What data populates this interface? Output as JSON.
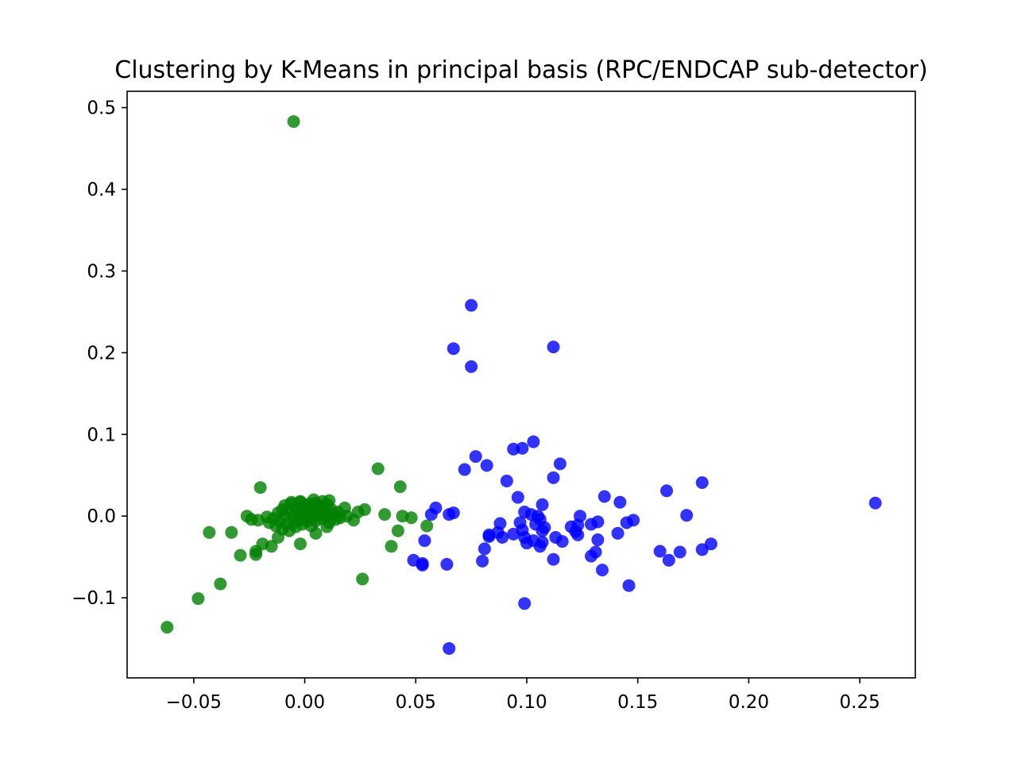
{
  "chart_data": {
    "type": "scatter",
    "title": "Clustering by K-Means in principal basis (RPC/ENDCAP sub-detector)",
    "xlabel": "",
    "ylabel": "",
    "xlim": [
      -0.08,
      0.275
    ],
    "ylim": [
      -0.198,
      0.52
    ],
    "x_ticks": [
      -0.05,
      0.0,
      0.05,
      0.1,
      0.15,
      0.2,
      0.25
    ],
    "x_tick_labels": [
      "−0.05",
      "0.00",
      "0.05",
      "0.10",
      "0.15",
      "0.20",
      "0.25"
    ],
    "y_ticks": [
      -0.1,
      0.0,
      0.1,
      0.2,
      0.3,
      0.4,
      0.5
    ],
    "y_tick_labels": [
      "−0.1",
      "0.0",
      "0.1",
      "0.2",
      "0.3",
      "0.4",
      "0.5"
    ],
    "grid": false,
    "legend": "none",
    "series": [
      {
        "color": "#008000",
        "points": [
          [
            -0.005,
            0.483
          ],
          [
            -0.062,
            -0.136
          ],
          [
            -0.048,
            -0.101
          ],
          [
            -0.038,
            -0.083
          ],
          [
            -0.043,
            -0.02
          ],
          [
            -0.033,
            -0.02
          ],
          [
            -0.029,
            -0.048
          ],
          [
            -0.022,
            -0.047
          ],
          [
            -0.022,
            -0.043
          ],
          [
            -0.019,
            -0.034
          ],
          [
            -0.015,
            -0.037
          ],
          [
            -0.012,
            -0.026
          ],
          [
            -0.02,
            0.035
          ],
          [
            -0.026,
            0.0
          ],
          [
            -0.024,
            -0.004
          ],
          [
            -0.021,
            -0.005
          ],
          [
            -0.017,
            -0.001
          ],
          [
            -0.016,
            -0.008
          ],
          [
            -0.014,
            -0.003
          ],
          [
            -0.013,
            -0.012
          ],
          [
            -0.012,
            0.004
          ],
          [
            -0.011,
            -0.007
          ],
          [
            -0.01,
            0.008
          ],
          [
            -0.01,
            -0.016
          ],
          [
            -0.009,
            0.013
          ],
          [
            -0.009,
            0.0
          ],
          [
            -0.008,
            -0.01
          ],
          [
            -0.007,
            0.005
          ],
          [
            -0.007,
            -0.018
          ],
          [
            -0.006,
            0.015
          ],
          [
            -0.005,
            0.0
          ],
          [
            -0.005,
            -0.008
          ],
          [
            -0.004,
            0.01
          ],
          [
            -0.004,
            -0.013
          ],
          [
            -0.003,
            0.004
          ],
          [
            -0.002,
            0.017
          ],
          [
            -0.002,
            -0.004
          ],
          [
            -0.001,
            0.009
          ],
          [
            -0.001,
            -0.01
          ],
          [
            0.0,
            0.0
          ],
          [
            0.0,
            0.013
          ],
          [
            0.001,
            -0.006
          ],
          [
            0.001,
            0.006
          ],
          [
            0.002,
            0.015
          ],
          [
            0.002,
            -0.002
          ],
          [
            0.003,
            0.009
          ],
          [
            0.003,
            -0.012
          ],
          [
            0.004,
            0.003
          ],
          [
            0.005,
            0.016
          ],
          [
            0.005,
            -0.006
          ],
          [
            0.006,
            0.008
          ],
          [
            0.006,
            0.0
          ],
          [
            0.007,
            0.012
          ],
          [
            0.008,
            -0.003
          ],
          [
            0.008,
            0.018
          ],
          [
            0.009,
            0.006
          ],
          [
            0.01,
            0.0
          ],
          [
            0.01,
            0.014
          ],
          [
            0.011,
            -0.008
          ],
          [
            0.012,
            0.008
          ],
          [
            0.013,
            0.002
          ],
          [
            0.014,
            -0.004
          ],
          [
            0.015,
            0.005
          ],
          [
            0.016,
            -0.002
          ],
          [
            0.018,
            0.01
          ],
          [
            0.019,
            0.0
          ],
          [
            0.011,
            0.019
          ],
          [
            0.004,
            0.02
          ],
          [
            -0.002,
            0.018
          ],
          [
            -0.006,
            0.017
          ],
          [
            -0.002,
            -0.034
          ],
          [
            0.005,
            -0.021
          ],
          [
            0.01,
            -0.013
          ],
          [
            0.022,
            -0.005
          ],
          [
            0.024,
            0.005
          ],
          [
            0.027,
            0.008
          ],
          [
            0.026,
            -0.077
          ],
          [
            0.033,
            0.058
          ],
          [
            0.036,
            0.002
          ],
          [
            0.039,
            -0.037
          ],
          [
            0.042,
            -0.018
          ],
          [
            0.043,
            0.036
          ],
          [
            0.044,
            0.0
          ],
          [
            0.048,
            -0.002
          ],
          [
            0.055,
            -0.012
          ]
        ]
      },
      {
        "color": "#0000ff",
        "points": [
          [
            0.075,
            0.258
          ],
          [
            0.067,
            0.205
          ],
          [
            0.075,
            0.183
          ],
          [
            0.112,
            0.207
          ],
          [
            0.257,
            0.016
          ],
          [
            0.103,
            0.091
          ],
          [
            0.094,
            0.082
          ],
          [
            0.098,
            0.083
          ],
          [
            0.077,
            0.073
          ],
          [
            0.082,
            0.062
          ],
          [
            0.072,
            0.057
          ],
          [
            0.115,
            0.064
          ],
          [
            0.112,
            0.047
          ],
          [
            0.091,
            0.043
          ],
          [
            0.096,
            0.023
          ],
          [
            0.107,
            0.014
          ],
          [
            0.059,
            0.01
          ],
          [
            0.057,
            0.002
          ],
          [
            0.065,
            0.002
          ],
          [
            0.067,
            0.004
          ],
          [
            0.099,
            0.005
          ],
          [
            0.102,
            0.002
          ],
          [
            0.105,
            0.0
          ],
          [
            0.106,
            -0.004
          ],
          [
            0.097,
            -0.008
          ],
          [
            0.088,
            -0.009
          ],
          [
            0.104,
            -0.01
          ],
          [
            0.108,
            -0.014
          ],
          [
            0.107,
            -0.018
          ],
          [
            0.098,
            -0.017
          ],
          [
            0.087,
            -0.02
          ],
          [
            0.083,
            -0.023
          ],
          [
            0.089,
            -0.026
          ],
          [
            0.094,
            -0.022
          ],
          [
            0.099,
            -0.026
          ],
          [
            0.103,
            -0.03
          ],
          [
            0.1,
            -0.033
          ],
          [
            0.106,
            -0.037
          ],
          [
            0.107,
            -0.032
          ],
          [
            0.113,
            -0.026
          ],
          [
            0.116,
            -0.031
          ],
          [
            0.12,
            -0.013
          ],
          [
            0.123,
            -0.011
          ],
          [
            0.122,
            -0.019
          ],
          [
            0.123,
            -0.023
          ],
          [
            0.124,
            0.0
          ],
          [
            0.129,
            -0.01
          ],
          [
            0.132,
            -0.007
          ],
          [
            0.135,
            0.024
          ],
          [
            0.132,
            -0.029
          ],
          [
            0.131,
            -0.044
          ],
          [
            0.129,
            -0.049
          ],
          [
            0.134,
            -0.066
          ],
          [
            0.142,
            0.017
          ],
          [
            0.141,
            -0.021
          ],
          [
            0.145,
            -0.008
          ],
          [
            0.148,
            -0.005
          ],
          [
            0.146,
            -0.085
          ],
          [
            0.112,
            -0.053
          ],
          [
            0.099,
            -0.107
          ],
          [
            0.081,
            -0.04
          ],
          [
            0.08,
            -0.055
          ],
          [
            0.083,
            -0.025
          ],
          [
            0.054,
            -0.03
          ],
          [
            0.049,
            -0.054
          ],
          [
            0.053,
            -0.058
          ],
          [
            0.053,
            -0.06
          ],
          [
            0.064,
            -0.059
          ],
          [
            0.065,
            -0.162
          ],
          [
            0.16,
            -0.043
          ],
          [
            0.164,
            -0.054
          ],
          [
            0.169,
            -0.044
          ],
          [
            0.163,
            0.031
          ],
          [
            0.172,
            0.001
          ],
          [
            0.179,
            0.041
          ],
          [
            0.179,
            -0.041
          ],
          [
            0.183,
            -0.034
          ]
        ]
      }
    ]
  }
}
